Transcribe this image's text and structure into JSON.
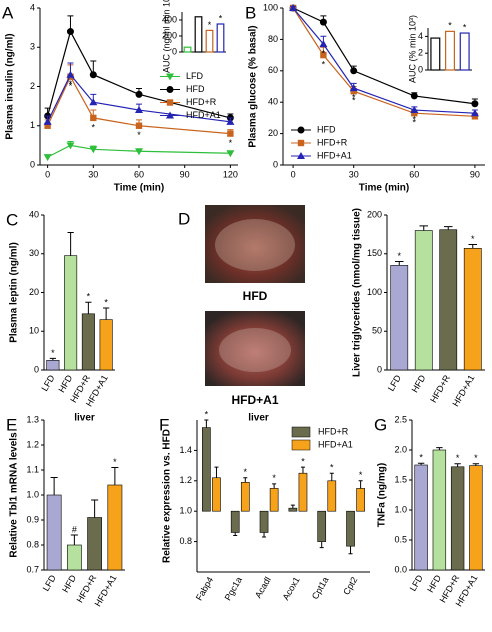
{
  "chart_data": [
    {
      "type": "line",
      "panel": "A",
      "xlabel": "Time (min)",
      "ylabel": "Plasma insulin (ng/ml)",
      "x": [
        0,
        15,
        30,
        60,
        120
      ],
      "xlim": [
        -5,
        125
      ],
      "xticks": [
        0,
        30,
        60,
        90,
        120
      ],
      "ylim": [
        0,
        4
      ],
      "yticks": [
        0,
        1,
        2,
        3,
        4
      ],
      "legend": "center right",
      "series": [
        {
          "name": "LFD",
          "color": "#2dbf3a",
          "marker": "triangle-down",
          "values": [
            0.2,
            0.5,
            0.4,
            0.35,
            0.3
          ],
          "errors": [
            0.05,
            0.1,
            0.08,
            0.05,
            0.05
          ]
        },
        {
          "name": "HFD",
          "color": "#000000",
          "marker": "circle",
          "values": [
            1.25,
            3.4,
            2.3,
            1.8,
            1.2
          ],
          "errors": [
            0.2,
            0.4,
            0.35,
            0.15,
            0.1
          ]
        },
        {
          "name": "HFD+R",
          "color": "#c8641e",
          "marker": "square",
          "values": [
            1.0,
            2.25,
            1.2,
            1.0,
            0.8
          ],
          "errors": [
            0.15,
            0.3,
            0.2,
            0.15,
            0.1
          ],
          "significance": [
            null,
            "*",
            "*",
            "*",
            "*"
          ]
        },
        {
          "name": "HFD+A1",
          "color": "#2323b4",
          "marker": "triangle-up",
          "values": [
            1.1,
            2.3,
            1.6,
            1.4,
            1.1
          ],
          "errors": [
            0.15,
            0.3,
            0.2,
            0.15,
            0.1
          ],
          "significance": [
            null,
            "*",
            null,
            null,
            null
          ]
        }
      ]
    },
    {
      "type": "bar",
      "fill": "none",
      "ylabel": "AUC (ng/ml min 10³)",
      "categories": [
        null,
        null,
        null,
        null
      ],
      "values": [
        60,
        440,
        270,
        350
      ],
      "colors": [
        "#2dbf3a",
        "#000000",
        "#c8641e",
        "#2323b4"
      ],
      "ylim": [
        0,
        500
      ],
      "yticks": [
        0,
        200,
        400
      ],
      "significance": [
        null,
        null,
        "*",
        "*"
      ]
    },
    {
      "type": "line",
      "panel": "B",
      "xlabel": "Time (min)",
      "ylabel": "Plasma glucose (% basal)",
      "x": [
        0,
        15,
        30,
        60,
        90
      ],
      "xlim": [
        -5,
        95
      ],
      "xticks": [
        0,
        30,
        60,
        90
      ],
      "ylim": [
        0,
        100
      ],
      "yticks": [
        0,
        20,
        40,
        60,
        80,
        100
      ],
      "legend": "lower left",
      "series": [
        {
          "name": "HFD",
          "color": "#000000",
          "marker": "circle",
          "values": [
            100,
            91,
            60,
            44,
            39
          ],
          "errors": [
            1,
            4,
            3,
            2,
            3
          ]
        },
        {
          "name": "HFD+R",
          "color": "#c8641e",
          "marker": "square",
          "values": [
            100,
            70,
            47,
            33,
            31
          ],
          "errors": [
            1,
            5,
            3,
            2,
            2
          ],
          "significance": [
            null,
            "*",
            "*",
            "*",
            null
          ]
        },
        {
          "name": "HFD+A1",
          "color": "#2323b4",
          "marker": "triangle-up",
          "values": [
            100,
            77,
            49,
            35,
            33
          ],
          "errors": [
            1,
            5,
            3,
            2,
            2
          ],
          "significance": [
            null,
            "*",
            "*",
            "*",
            null
          ]
        }
      ]
    },
    {
      "type": "bar",
      "fill": "none",
      "ylabel": "AUC (% min 10³)",
      "categories": [
        null,
        null,
        null
      ],
      "values": [
        3.8,
        4.6,
        4.4
      ],
      "colors": [
        "#000000",
        "#c8641e",
        "#2323b4"
      ],
      "ylim": [
        0,
        5
      ],
      "yticks": [
        0,
        2,
        4
      ],
      "significance": [
        null,
        "*",
        "*"
      ]
    },
    {
      "type": "bar",
      "panel": "C",
      "ylabel": "Plasma leptin (ng/ml)",
      "categories": [
        "LFD",
        "HFD",
        "HFD+R",
        "HFD+A1"
      ],
      "values": [
        2.5,
        29.5,
        14.5,
        13
      ],
      "errors": [
        0.5,
        6,
        3,
        3
      ],
      "colors": [
        "#a8a8d2",
        "#b5e09e",
        "#6b6c4d",
        "#f7a21b"
      ],
      "ylim": [
        0,
        40
      ],
      "yticks": [
        0,
        10,
        20,
        30,
        40
      ],
      "significance": [
        "*",
        null,
        "*",
        "*"
      ],
      "xtick_rotation": -60
    },
    {
      "type": "image",
      "panel": "D",
      "captions": [
        "HFD",
        "HFD+A1"
      ]
    },
    {
      "type": "bar",
      "ylabel": "Liver triglycerides (nmol/mg tissue)",
      "categories": [
        "LFD",
        "HFD",
        "HFD+R",
        "HFD+A1"
      ],
      "values": [
        135,
        180,
        181,
        157
      ],
      "errors": [
        5,
        6,
        4,
        5
      ],
      "colors": [
        "#a8a8d2",
        "#b5e09e",
        "#6b6c4d",
        "#f7a21b"
      ],
      "ylim": [
        0,
        200
      ],
      "yticks": [
        0,
        50,
        100,
        150,
        200
      ],
      "significance": [
        "*",
        null,
        null,
        "*"
      ],
      "xtick_rotation": -60
    },
    {
      "type": "bar",
      "panel": "E",
      "subtitle": "liver",
      "ylabel": "Relative Tbl1 mRNA levels",
      "categories": [
        "LFD",
        "HFD",
        "HFD+R",
        "HFD+A1"
      ],
      "values": [
        1.0,
        0.8,
        0.91,
        1.04
      ],
      "errors": [
        0.07,
        0.04,
        0.07,
        0.07
      ],
      "colors": [
        "#a8a8d2",
        "#b5e09e",
        "#6b6c4d",
        "#f7a21b"
      ],
      "ylim": [
        0.7,
        1.3
      ],
      "yticks": [
        0.7,
        0.8,
        0.9,
        {
          "value": 1,
          "label": "1.0"
        },
        1.1,
        1.2,
        1.3
      ],
      "significance": [
        null,
        "#",
        null,
        "*"
      ],
      "xtick_rotation": -60
    },
    {
      "type": "bar",
      "panel": "F",
      "subtitle": "liver",
      "ylabel": "Relative expression vs. HFD",
      "categories": [
        "Fabp4",
        "Pgc1a",
        "Acadl",
        "Acox1",
        "Cpt1a",
        "Cpt2"
      ],
      "baseline": 1,
      "ylim": [
        0.6,
        1.6
      ],
      "yticks": [
        0.8,
        {
          "value": 1,
          "label": "1.0"
        },
        1.2,
        1.4
      ],
      "legend": "upper right",
      "xtick_rotation": -60,
      "series": [
        {
          "name": "HFD+R",
          "color": "#6b6c4d",
          "values": [
            1.55,
            0.86,
            0.86,
            1.02,
            0.8,
            0.77
          ],
          "errors": [
            0.05,
            0.02,
            0.03,
            0.02,
            0.04,
            0.05
          ],
          "significance": [
            "*",
            null,
            null,
            null,
            null,
            null
          ]
        },
        {
          "name": "HFD+A1",
          "color": "#f7a21b",
          "values": [
            1.22,
            1.19,
            1.15,
            1.25,
            1.2,
            1.15
          ],
          "errors": [
            0.07,
            0.03,
            0.03,
            0.04,
            0.05,
            0.05
          ],
          "significance": [
            null,
            "*",
            "*",
            "*",
            "*",
            "*"
          ]
        }
      ]
    },
    {
      "type": "bar",
      "panel": "G",
      "ylabel": "TNFa (ng/mg)",
      "categories": [
        "LFD",
        "HFD",
        "HFD+R",
        "HFD+A1"
      ],
      "values": [
        1.75,
        2.0,
        1.72,
        1.74
      ],
      "errors": [
        0.03,
        0.04,
        0.05,
        0.03
      ],
      "colors": [
        "#a8a8d2",
        "#b5e09e",
        "#6b6c4d",
        "#f7a21b"
      ],
      "ylim": [
        0,
        2.5
      ],
      "yticks": [
        {
          "value": 0,
          "label": "0.0"
        },
        0.5,
        {
          "value": 1,
          "label": "1.0"
        },
        1.5,
        {
          "value": 2,
          "label": "2.0"
        },
        2.5
      ],
      "significance": [
        "*",
        null,
        "*",
        "*"
      ],
      "xtick_rotation": -60
    }
  ]
}
